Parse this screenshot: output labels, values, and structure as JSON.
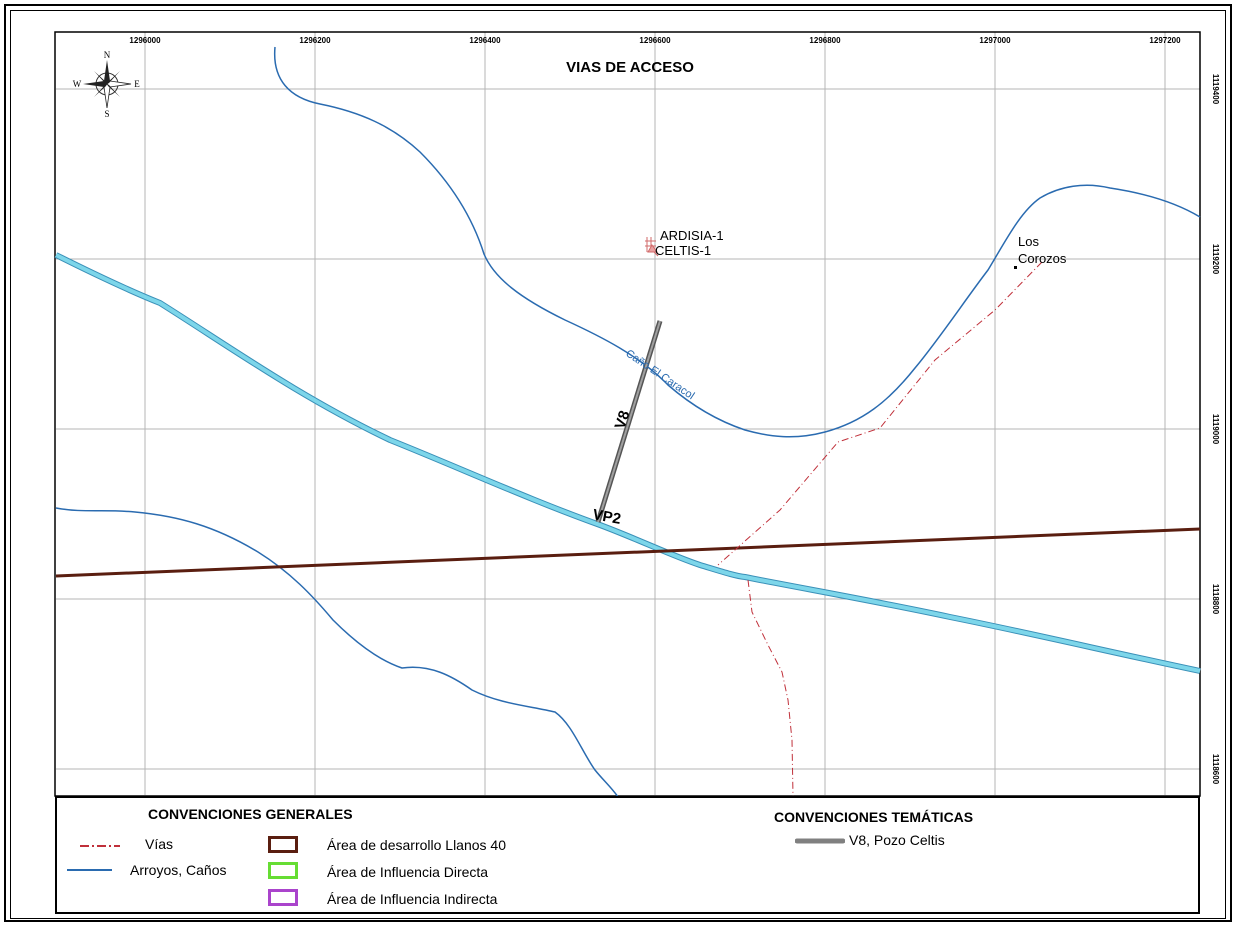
{
  "map": {
    "title": "VIAS DE ACCESO",
    "x_ticks": [
      "1296000",
      "1296200",
      "1296400",
      "1296600",
      "1296800",
      "1297000",
      "1297200"
    ],
    "y_ticks": [
      "1119400",
      "1119200",
      "1119000",
      "1118800",
      "1118600"
    ],
    "compass": {
      "n": "N",
      "s": "S",
      "e": "E",
      "w": "W"
    },
    "wells": {
      "ardisia": "ARDISIA-1",
      "celtis": "CELTIS-1"
    },
    "place": {
      "line1": "Los",
      "line2": "Corozos"
    },
    "stream_label": "Caño El Caracol",
    "road_v8": "V8",
    "road_vp2": "VP2",
    "colors": {
      "stream": "#2a6bb0",
      "main_river": "#5bc0d9",
      "area_line": "#5a1e10",
      "road_v8": "#808080",
      "vias": "#c0303a",
      "influencia_directa": "#66dd33",
      "influencia_indirecta": "#aa44cc"
    }
  },
  "legend": {
    "general_title": "CONVENCIONES GENERALES",
    "thematic_title": "CONVENCIONES TEMÁTICAS",
    "items": {
      "vias": "Vías",
      "arroyos": "Arroyos, Caños",
      "area_desarrollo": "Área de desarrollo Llanos 40",
      "area_directa": "Área de Influencia Directa",
      "area_indirecta": "Área de Influencia Indirecta",
      "v8": "V8, Pozo Celtis"
    }
  }
}
